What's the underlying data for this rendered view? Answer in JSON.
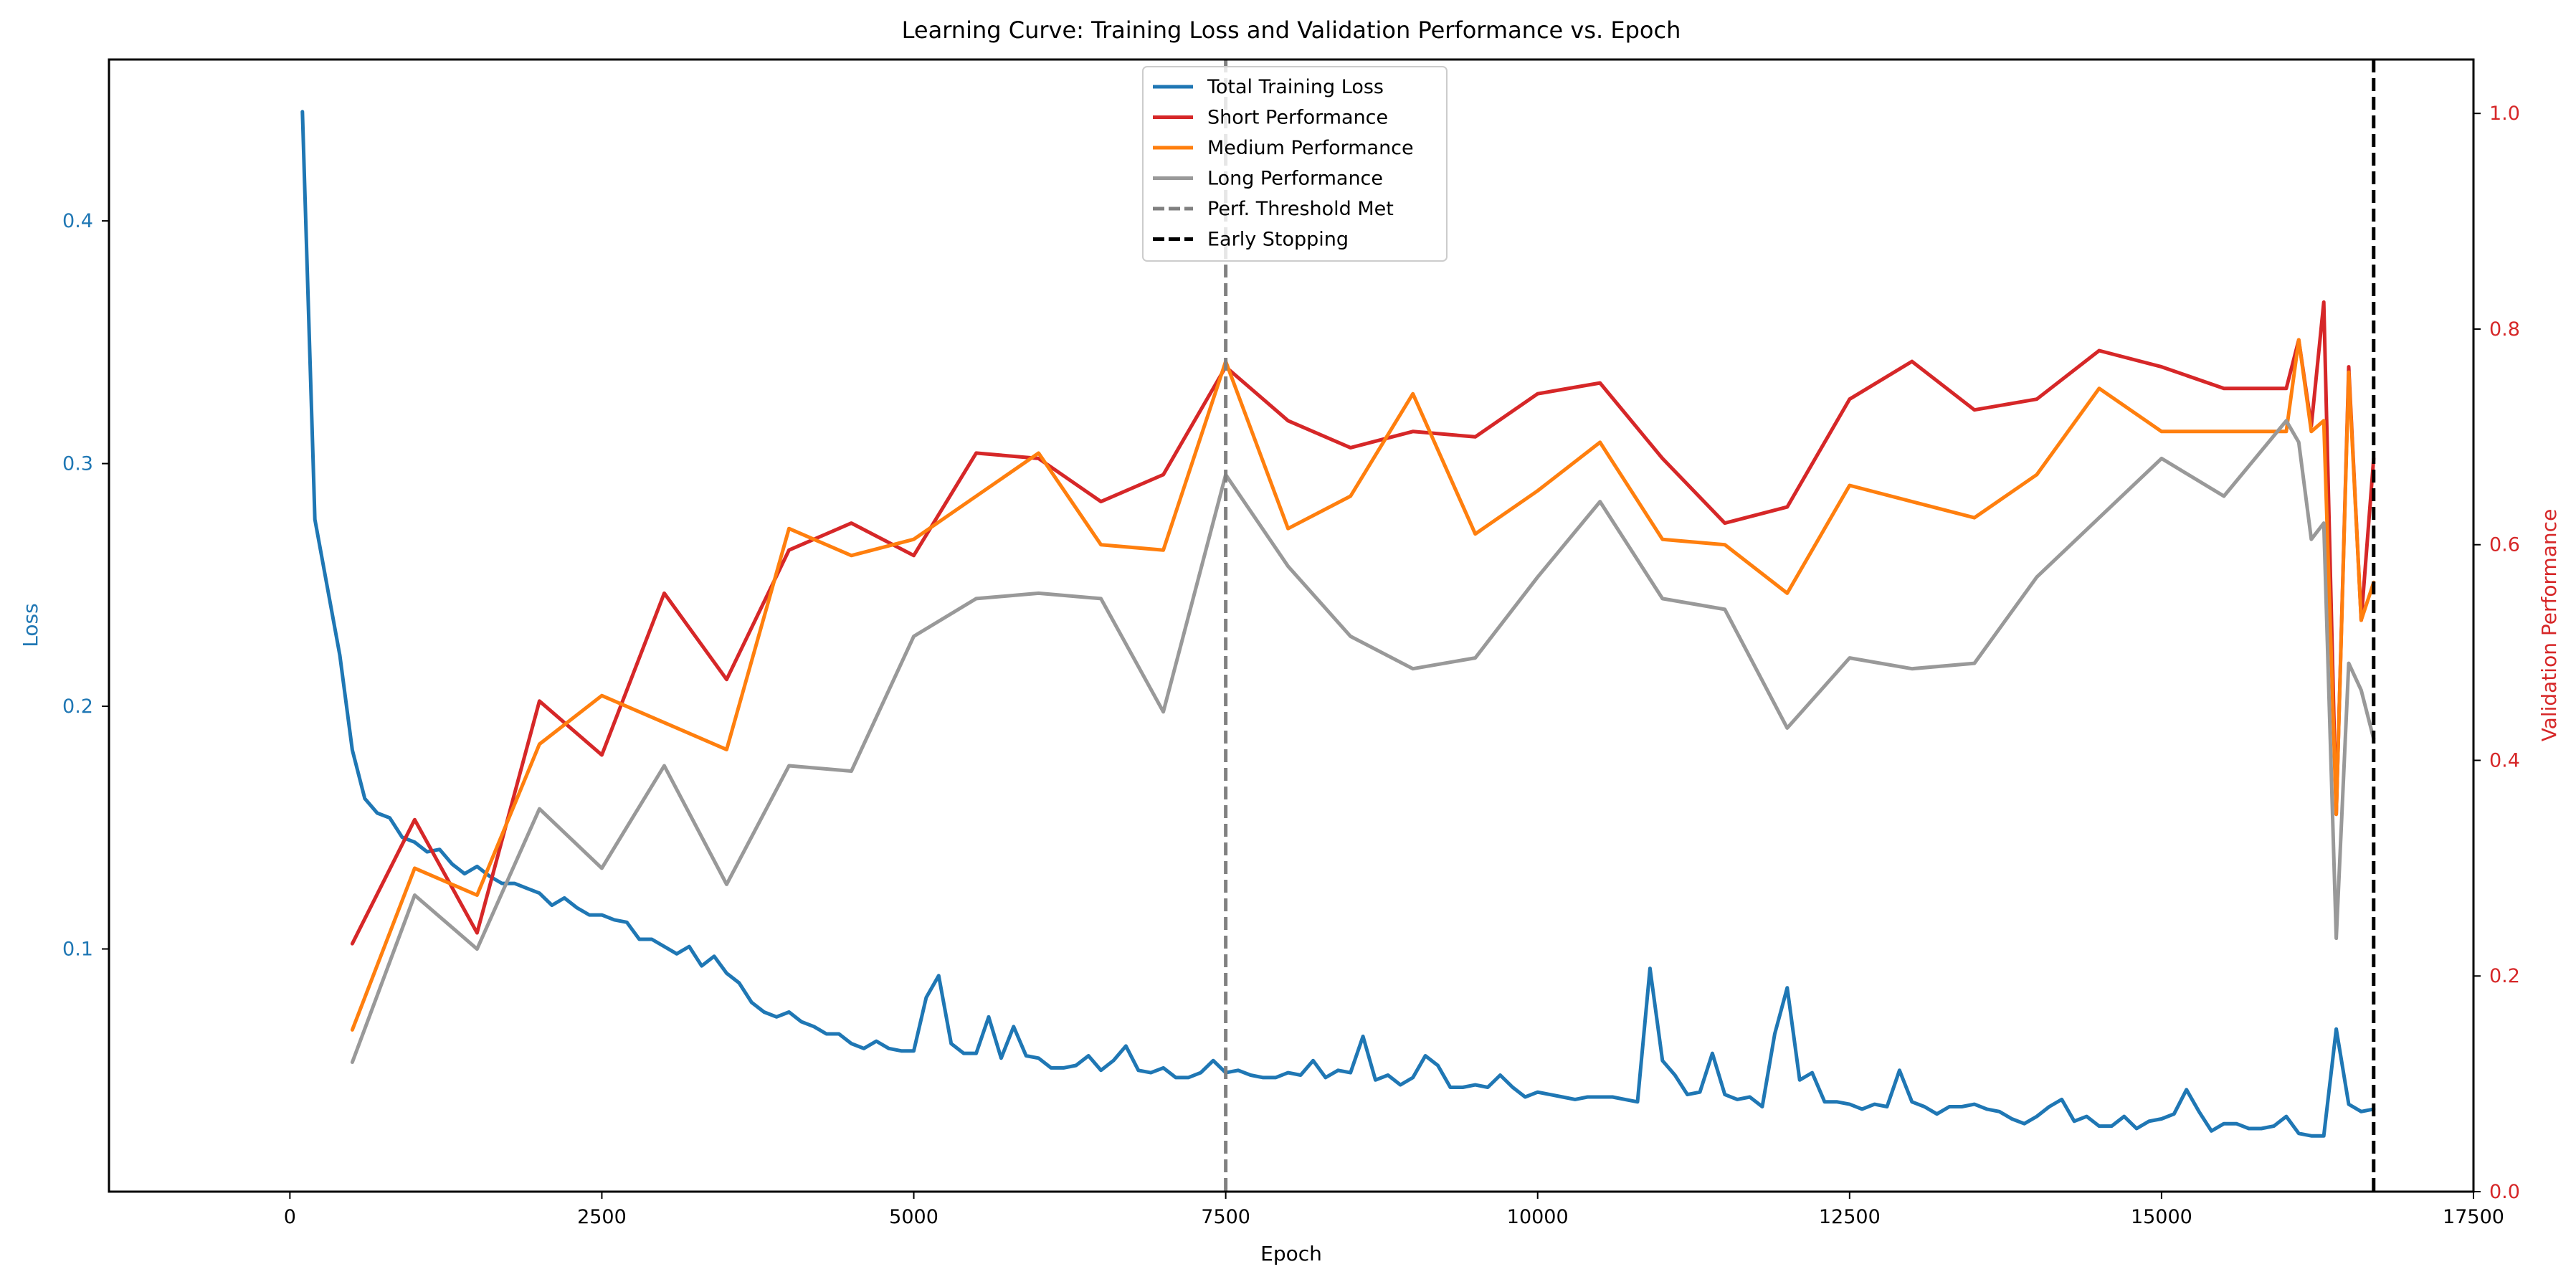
{
  "chart_data": {
    "type": "line",
    "title": "Learning Curve: Training Loss and Validation Performance vs. Epoch",
    "xlabel": "Epoch",
    "ylabel_left": "Loss",
    "ylabel_right": "Validation Performance",
    "xlim": [
      -1450,
      17500
    ],
    "ylim_left": [
      0.0,
      0.4665
    ],
    "ylim_right": [
      0.0,
      1.05
    ],
    "x_ticks": [
      0,
      2500,
      5000,
      7500,
      10000,
      12500,
      15000,
      17500
    ],
    "y_left_ticks": [
      0.1,
      0.2,
      0.3,
      0.4
    ],
    "y_right_ticks": [
      0.0,
      0.2,
      0.4,
      0.6,
      0.8,
      1.0
    ],
    "x_tick_labels": [
      "0",
      "2500",
      "5000",
      "7500",
      "10000",
      "12500",
      "15000",
      "17500"
    ],
    "y_left_tick_labels": [
      "0.1",
      "0.2",
      "0.3",
      "0.4"
    ],
    "y_right_tick_labels": [
      "0.0",
      "0.2",
      "0.4",
      "0.6",
      "0.8",
      "1.0"
    ],
    "grid": false,
    "legend_position": "top-center",
    "colors": {
      "loss_axis": "#1f77b4",
      "perf_axis": "#d62728"
    },
    "series": [
      {
        "name": "Total Training Loss",
        "axis": "left",
        "color": "#1f77b4",
        "style": "solid",
        "x": [
          100,
          200,
          300,
          400,
          500,
          600,
          700,
          800,
          900,
          1000,
          1100,
          1200,
          1300,
          1400,
          1500,
          1600,
          1700,
          1800,
          1900,
          2000,
          2100,
          2200,
          2300,
          2400,
          2500,
          2600,
          2700,
          2800,
          2900,
          3000,
          3100,
          3200,
          3300,
          3400,
          3500,
          3600,
          3700,
          3800,
          3900,
          4000,
          4100,
          4200,
          4300,
          4400,
          4500,
          4600,
          4700,
          4800,
          4900,
          5000,
          5100,
          5200,
          5300,
          5400,
          5500,
          5600,
          5700,
          5800,
          5900,
          6000,
          6100,
          6200,
          6300,
          6400,
          6500,
          6600,
          6700,
          6800,
          6900,
          7000,
          7100,
          7200,
          7300,
          7400,
          7500,
          7600,
          7700,
          7800,
          7900,
          8000,
          8100,
          8200,
          8300,
          8400,
          8500,
          8600,
          8700,
          8800,
          8900,
          9000,
          9100,
          9200,
          9300,
          9400,
          9500,
          9600,
          9700,
          9800,
          9900,
          10000,
          10100,
          10200,
          10300,
          10400,
          10500,
          10600,
          10700,
          10800,
          10900,
          11000,
          11100,
          11200,
          11300,
          11400,
          11500,
          11600,
          11700,
          11800,
          11900,
          12000,
          12100,
          12200,
          12300,
          12400,
          12500,
          12600,
          12700,
          12800,
          12900,
          13000,
          13100,
          13200,
          13300,
          13400,
          13500,
          13600,
          13700,
          13800,
          13900,
          14000,
          14100,
          14200,
          14300,
          14400,
          14500,
          14600,
          14700,
          14800,
          14900,
          15000,
          15100,
          15200,
          15300,
          15400,
          15500,
          15600,
          15700,
          15800,
          15900,
          16000,
          16100,
          16200,
          16300,
          16400,
          16500,
          16600,
          16700
        ],
        "values": [
          0.445,
          0.277,
          0.249,
          0.221,
          0.182,
          0.162,
          0.156,
          0.154,
          0.146,
          0.144,
          0.14,
          0.141,
          0.135,
          0.131,
          0.134,
          0.13,
          0.127,
          0.127,
          0.125,
          0.123,
          0.118,
          0.121,
          0.117,
          0.114,
          0.114,
          0.112,
          0.111,
          0.104,
          0.104,
          0.101,
          0.098,
          0.101,
          0.093,
          0.097,
          0.09,
          0.086,
          0.078,
          0.074,
          0.072,
          0.074,
          0.07,
          0.068,
          0.065,
          0.065,
          0.061,
          0.059,
          0.062,
          0.059,
          0.058,
          0.058,
          0.08,
          0.089,
          0.061,
          0.057,
          0.057,
          0.072,
          0.055,
          0.068,
          0.056,
          0.055,
          0.051,
          0.051,
          0.052,
          0.056,
          0.05,
          0.054,
          0.06,
          0.05,
          0.049,
          0.051,
          0.047,
          0.047,
          0.049,
          0.054,
          0.049,
          0.05,
          0.048,
          0.047,
          0.047,
          0.049,
          0.048,
          0.054,
          0.047,
          0.05,
          0.049,
          0.064,
          0.046,
          0.048,
          0.044,
          0.047,
          0.056,
          0.052,
          0.043,
          0.043,
          0.044,
          0.043,
          0.048,
          0.043,
          0.039,
          0.041,
          0.04,
          0.039,
          0.038,
          0.039,
          0.039,
          0.039,
          0.038,
          0.037,
          0.092,
          0.054,
          0.048,
          0.04,
          0.041,
          0.057,
          0.04,
          0.038,
          0.039,
          0.035,
          0.065,
          0.084,
          0.046,
          0.049,
          0.037,
          0.037,
          0.036,
          0.034,
          0.036,
          0.035,
          0.05,
          0.037,
          0.035,
          0.032,
          0.035,
          0.035,
          0.036,
          0.034,
          0.033,
          0.03,
          0.028,
          0.031,
          0.035,
          0.038,
          0.029,
          0.031,
          0.027,
          0.027,
          0.031,
          0.026,
          0.029,
          0.03,
          0.032,
          0.042,
          0.033,
          0.025,
          0.028,
          0.028,
          0.026,
          0.026,
          0.027,
          0.031,
          0.024,
          0.023,
          0.023,
          0.067,
          0.036,
          0.033,
          0.034
        ]
      },
      {
        "name": "Short Performance",
        "axis": "right",
        "color": "#d62728",
        "style": "solid",
        "x": [
          500,
          1000,
          1500,
          2000,
          2500,
          3000,
          3500,
          4000,
          4500,
          5000,
          5500,
          6000,
          6500,
          7000,
          7500,
          8000,
          8500,
          9000,
          9500,
          10000,
          10500,
          11000,
          11500,
          12000,
          12500,
          13000,
          13500,
          14000,
          14500,
          15000,
          15500,
          16000,
          16100,
          16200,
          16300,
          16400,
          16500,
          16600,
          16700
        ],
        "values": [
          0.23,
          0.345,
          0.24,
          0.455,
          0.405,
          0.555,
          0.475,
          0.595,
          0.62,
          0.59,
          0.685,
          0.68,
          0.64,
          0.665,
          0.765,
          0.715,
          0.69,
          0.705,
          0.7,
          0.74,
          0.75,
          0.68,
          0.62,
          0.635,
          0.735,
          0.77,
          0.725,
          0.735,
          0.78,
          0.765,
          0.745,
          0.745,
          0.79,
          0.71,
          0.825,
          0.35,
          0.765,
          0.53,
          0.68
        ]
      },
      {
        "name": "Medium Performance",
        "axis": "right",
        "color": "#ff7f0e",
        "style": "solid",
        "x": [
          500,
          1000,
          1500,
          2000,
          2500,
          3000,
          3500,
          4000,
          4500,
          5000,
          5500,
          6000,
          6500,
          7000,
          7500,
          8000,
          8500,
          9000,
          9500,
          10000,
          10500,
          11000,
          11500,
          12000,
          12500,
          13000,
          13500,
          14000,
          14500,
          15000,
          15500,
          16000,
          16100,
          16200,
          16300,
          16400,
          16500,
          16600,
          16700
        ],
        "values": [
          0.15,
          0.3,
          0.275,
          0.415,
          0.46,
          0.435,
          0.41,
          0.615,
          0.59,
          0.605,
          0.645,
          0.685,
          0.6,
          0.595,
          0.77,
          0.615,
          0.645,
          0.74,
          0.61,
          0.65,
          0.695,
          0.605,
          0.6,
          0.555,
          0.655,
          0.64,
          0.625,
          0.665,
          0.745,
          0.705,
          0.705,
          0.705,
          0.79,
          0.705,
          0.715,
          0.35,
          0.76,
          0.53,
          0.565
        ]
      },
      {
        "name": "Long Performance",
        "axis": "right",
        "color": "#999999",
        "style": "solid",
        "x": [
          500,
          1000,
          1500,
          2000,
          2500,
          3000,
          3500,
          4000,
          4500,
          5000,
          5500,
          6000,
          6500,
          7000,
          7500,
          8000,
          8500,
          9000,
          9500,
          10000,
          10500,
          11000,
          11500,
          12000,
          12500,
          13000,
          13500,
          14000,
          14500,
          15000,
          15500,
          16000,
          16100,
          16200,
          16300,
          16400,
          16500,
          16600,
          16700
        ],
        "values": [
          0.12,
          0.275,
          0.225,
          0.355,
          0.3,
          0.395,
          0.285,
          0.395,
          0.39,
          0.515,
          0.55,
          0.555,
          0.55,
          0.445,
          0.665,
          0.58,
          0.515,
          0.485,
          0.495,
          0.57,
          0.64,
          0.55,
          0.54,
          0.43,
          0.495,
          0.485,
          0.49,
          0.57,
          0.625,
          0.68,
          0.645,
          0.715,
          0.695,
          0.605,
          0.62,
          0.235,
          0.49,
          0.465,
          0.42
        ]
      },
      {
        "name": "Perf. Threshold Met",
        "color": "#808080",
        "style": "dashed",
        "vline_x": 7500
      },
      {
        "name": "Early Stopping",
        "color": "#000000",
        "style": "dashed",
        "vline_x": 16700
      }
    ]
  }
}
